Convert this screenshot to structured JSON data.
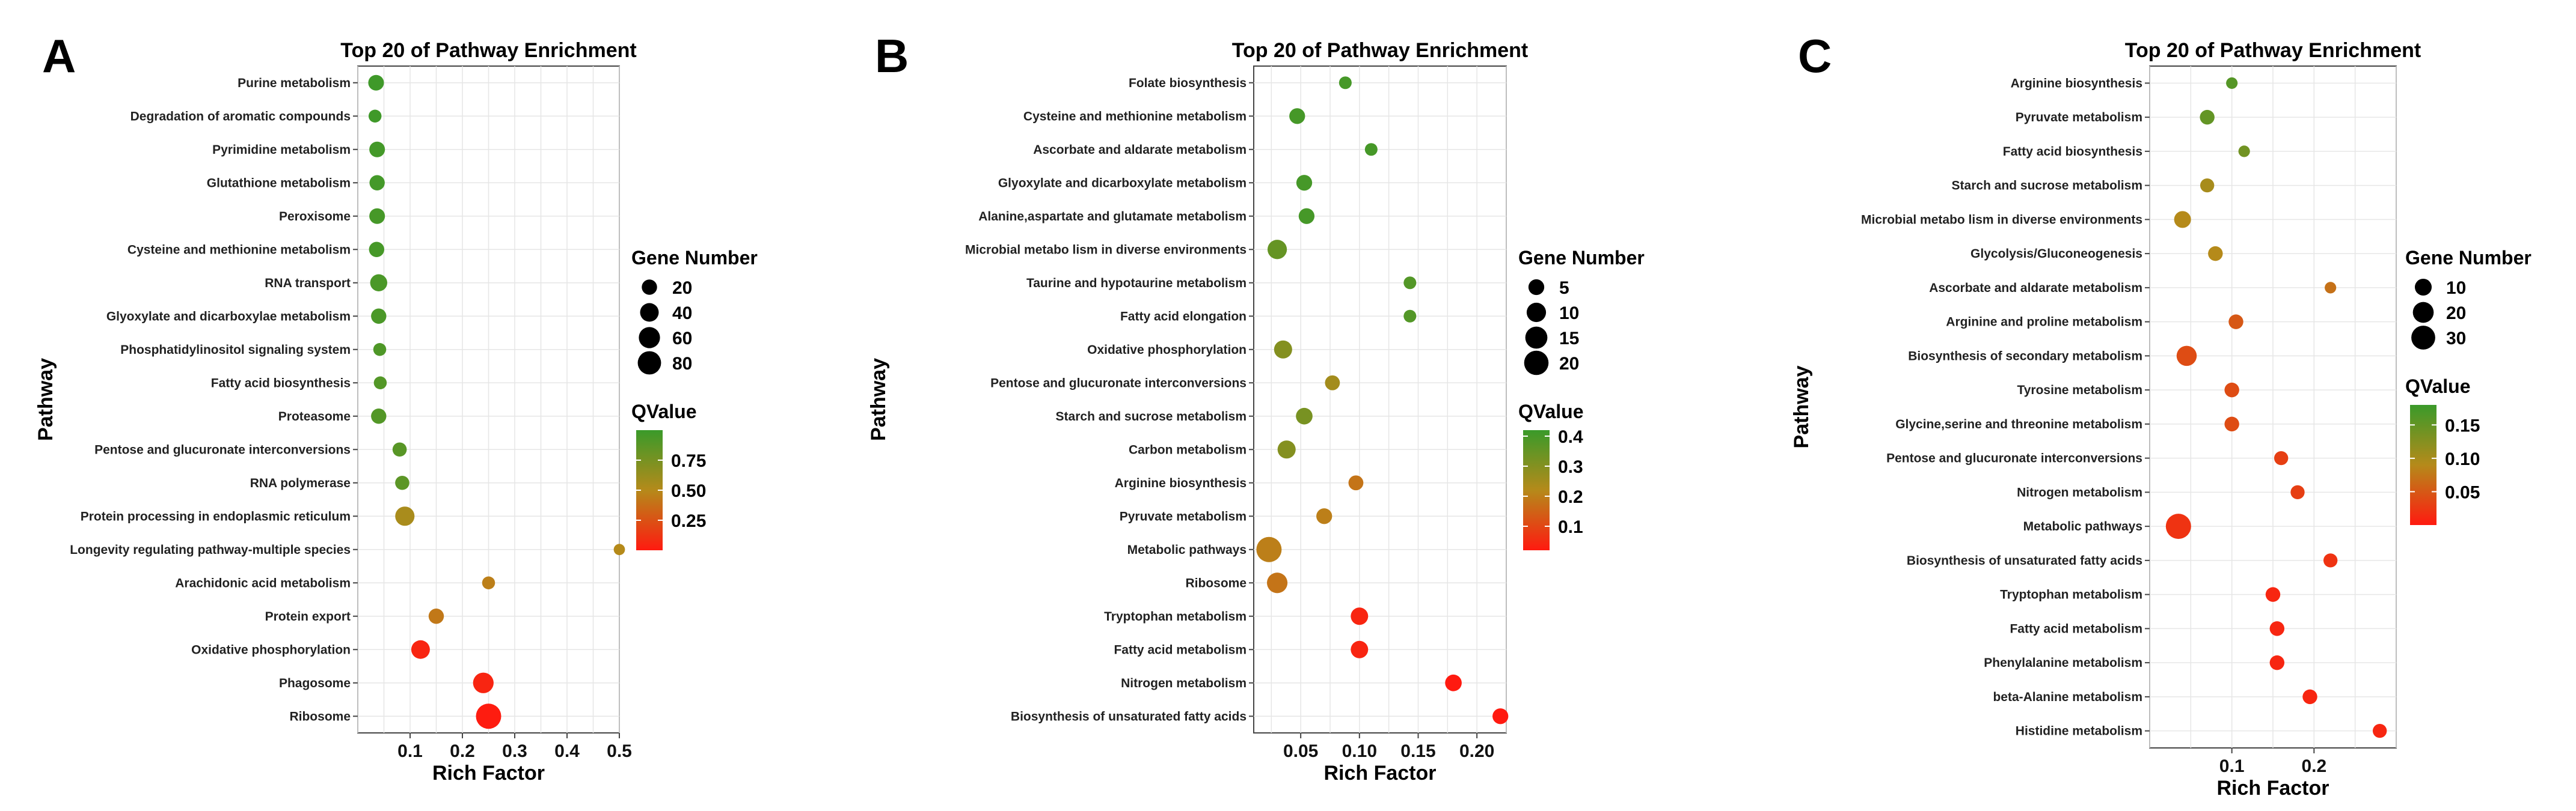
{
  "chart_data": [
    {
      "panel": "A",
      "type": "scatter",
      "title": "Top 20 of Pathway Enrichment",
      "xlabel": "Rich Factor",
      "ylabel": "Pathway",
      "xlim": [
        0,
        0.5
      ],
      "xticks": [
        0.1,
        0.2,
        0.3,
        0.4,
        0.5
      ],
      "xtick_labels": [
        "0.1",
        "0.2",
        "0.3",
        "0.4",
        "0.5"
      ],
      "grid": true,
      "pathways": [
        "Purine metabolism",
        "Degradation of aromatic compounds",
        "Pyrimidine metabolism",
        "Glutathione metabolism",
        "Peroxisome",
        "Cysteine and methionine metabolism",
        "RNA transport",
        "Glyoxylate and dicarboxylae metabolism",
        "Phosphatidylinositol signaling system",
        "Fatty acid biosynthesis",
        "Proteasome",
        "Pentose and glucuronate interconversions",
        "RNA polymerase",
        "Protein processing in endoplasmic reticulum",
        "Longevity regulating pathway-multiple species",
        "Arachidonic acid metabolism",
        "Protein export",
        "Oxidative phosphorylation",
        "Phagosome",
        "Ribosome"
      ],
      "rich_factor": [
        0.035,
        0.033,
        0.037,
        0.037,
        0.037,
        0.036,
        0.04,
        0.04,
        0.042,
        0.043,
        0.04,
        0.08,
        0.085,
        0.09,
        0.5,
        0.25,
        0.15,
        0.12,
        0.24,
        0.25
      ],
      "gene_number": [
        22,
        10,
        22,
        20,
        22,
        20,
        30,
        20,
        10,
        10,
        20,
        15,
        15,
        45,
        5,
        10,
        20,
        40,
        55,
        100
      ],
      "qvalue": [
        0.98,
        0.98,
        0.96,
        0.96,
        0.95,
        0.95,
        0.93,
        0.93,
        0.92,
        0.9,
        0.9,
        0.88,
        0.86,
        0.55,
        0.5,
        0.45,
        0.42,
        0.05,
        0.05,
        0.01
      ],
      "size_legend": {
        "title": "Gene Number",
        "values": [
          20,
          40,
          60,
          80
        ]
      },
      "color_legend": {
        "title": "QValue",
        "min": 0,
        "max": 1.0,
        "ticks": [
          0.75,
          0.5,
          0.25
        ],
        "tick_labels": [
          "0.75",
          "0.50",
          "0.25"
        ]
      }
    },
    {
      "panel": "B",
      "type": "scatter",
      "title": "Top 20 of Pathway Enrichment",
      "xlabel": "Rich Factor",
      "ylabel": "Pathway",
      "xlim": [
        0.01,
        0.225
      ],
      "xticks": [
        0.05,
        0.1,
        0.15,
        0.2
      ],
      "xtick_labels": [
        "0.05",
        "0.10",
        "0.15",
        "0.20"
      ],
      "grid": true,
      "pathways": [
        "Folate biosynthesis",
        "Cysteine and methionine metabolism",
        "Ascorbate and aldarate metabolism",
        "Glyoxylate and dicarboxylate metabolism",
        "Alanine,aspartate and glutamate metabolism",
        "Microbial metabo lism in diverse environments",
        "Taurine and hypotaurine metabolism",
        "Fatty acid elongation",
        "Oxidative phosphorylation",
        "Pentose and glucuronate interconversions",
        "Starch and sucrose metabolism",
        "Carbon metabolism",
        "Arginine biosynthesis",
        "Pyruvate metabolism",
        "Metabolic pathways",
        "Ribosome",
        "Tryptophan metabolism",
        "Fatty acid metabolism",
        "Nitrogen metabolism",
        "Biosynthesis of unsaturated fatty acids"
      ],
      "rich_factor": [
        0.088,
        0.047,
        0.11,
        0.053,
        0.055,
        0.03,
        0.143,
        0.143,
        0.035,
        0.077,
        0.053,
        0.038,
        0.097,
        0.07,
        0.023,
        0.03,
        0.1,
        0.1,
        0.18,
        0.22
      ],
      "gene_number": [
        2,
        5,
        2,
        5,
        5,
        10,
        2,
        2,
        8,
        4,
        6,
        8,
        4,
        5,
        22,
        12,
        7,
        7,
        6,
        5
      ],
      "qvalue": [
        0.4,
        0.4,
        0.4,
        0.4,
        0.4,
        0.35,
        0.38,
        0.38,
        0.3,
        0.25,
        0.32,
        0.3,
        0.18,
        0.2,
        0.2,
        0.18,
        0.04,
        0.04,
        0.02,
        0.01
      ],
      "size_legend": {
        "title": "Gene Number",
        "values": [
          5,
          10,
          15,
          20
        ]
      },
      "color_legend": {
        "title": "QValue",
        "min": 0.02,
        "max": 0.42,
        "ticks": [
          0.4,
          0.3,
          0.2,
          0.1
        ],
        "tick_labels": [
          "0.4",
          "0.3",
          "0.2",
          "0.1"
        ]
      }
    },
    {
      "panel": "C",
      "type": "scatter",
      "title": "Top 20 of Pathway Enrichment",
      "xlabel": "Rich Factor",
      "ylabel": "Pathway",
      "xlim": [
        0.0,
        0.3
      ],
      "xticks": [
        0.1,
        0.2
      ],
      "xtick_labels": [
        "0.1",
        "0.2"
      ],
      "grid": true,
      "pathways": [
        "Arginine biosynthesis",
        "Pyruvate metabolism",
        "Fatty acid biosynthesis",
        "Starch and sucrose metabolism",
        "Microbial metabo lism in diverse environments",
        "Glycolysis/Gluconeogenesis",
        "Ascorbate and aldarate metabolism",
        "Arginine and proline metabolism",
        "Biosynthesis of secondary metabolism",
        "Tyrosine metabolism",
        "Glycine,serine and threonine metabolism",
        "Pentose and glucuronate interconversions",
        "Nitrogen metabolism",
        "Metabolic pathways",
        "Biosynthesis of unsaturated fatty acids",
        "Tryptophan metabolism",
        "Fatty acid metabolism",
        "Phenylalanine metabolism",
        "beta-Alanine metabolism",
        "Histidine metabolism"
      ],
      "rich_factor": [
        0.1,
        0.07,
        0.115,
        0.07,
        0.04,
        0.08,
        0.22,
        0.105,
        0.045,
        0.1,
        0.1,
        0.16,
        0.18,
        0.035,
        0.22,
        0.15,
        0.155,
        0.155,
        0.195,
        0.28
      ],
      "gene_number": [
        2,
        6,
        2,
        5,
        10,
        6,
        2,
        6,
        18,
        6,
        6,
        5,
        5,
        35,
        5,
        6,
        6,
        6,
        6,
        5
      ],
      "qvalue": [
        0.16,
        0.15,
        0.14,
        0.1,
        0.09,
        0.09,
        0.07,
        0.05,
        0.04,
        0.04,
        0.04,
        0.03,
        0.03,
        0.02,
        0.02,
        0.01,
        0.01,
        0.01,
        0.01,
        0.01
      ],
      "size_legend": {
        "title": "Gene Number",
        "values": [
          10,
          20,
          30
        ]
      },
      "color_legend": {
        "title": "QValue",
        "min": 0.0,
        "max": 0.18,
        "ticks": [
          0.15,
          0.1,
          0.05
        ],
        "tick_labels": [
          "0.15",
          "0.10",
          "0.05"
        ]
      }
    }
  ]
}
